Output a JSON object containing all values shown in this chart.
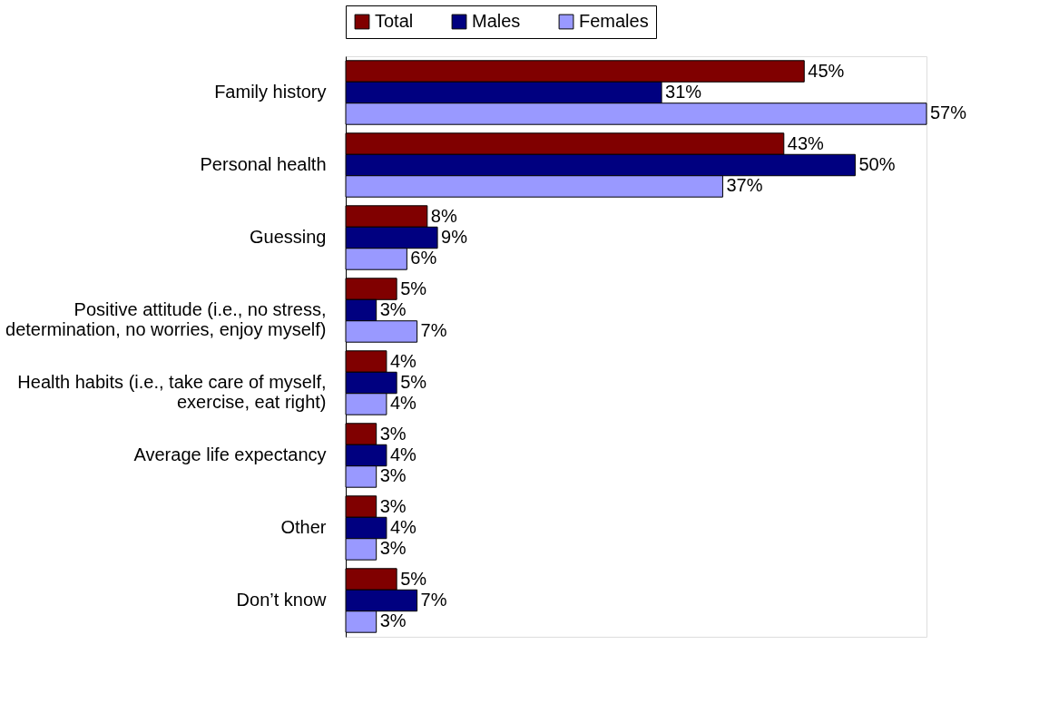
{
  "chart_data": {
    "type": "bar",
    "orientation": "horizontal",
    "categories": [
      "Family history",
      "Personal health",
      "Guessing",
      "Positive attitude (i.e., no stress,\ndetermination, no worries, enjoy myself)",
      "Health habits (i.e., take care of myself,\nexercise, eat right)",
      "Average life expectancy",
      "Other",
      "Don’t know"
    ],
    "series": [
      {
        "name": "Total",
        "color": "#800000",
        "values": [
          45,
          43,
          8,
          5,
          4,
          3,
          3,
          5
        ],
        "value_labels": [
          "45%",
          "43%",
          "8%",
          "5%",
          "4%",
          "3%",
          "3%",
          "5%"
        ]
      },
      {
        "name": "Males",
        "color": "#000080",
        "values": [
          31,
          50,
          9,
          3,
          5,
          4,
          4,
          7
        ],
        "value_labels": [
          "31%",
          "50%",
          "9%",
          "3%",
          "5%",
          "4%",
          "4%",
          "7%"
        ]
      },
      {
        "name": "Females",
        "color": "#9999ff",
        "values": [
          57,
          37,
          6,
          7,
          4,
          3,
          3,
          3
        ],
        "value_labels": [
          "57%",
          "37%",
          "6%",
          "7%",
          "4%",
          "3%",
          "3%",
          "3%"
        ]
      }
    ],
    "legend": "top",
    "grid": false,
    "tick_labels": "y"
  }
}
